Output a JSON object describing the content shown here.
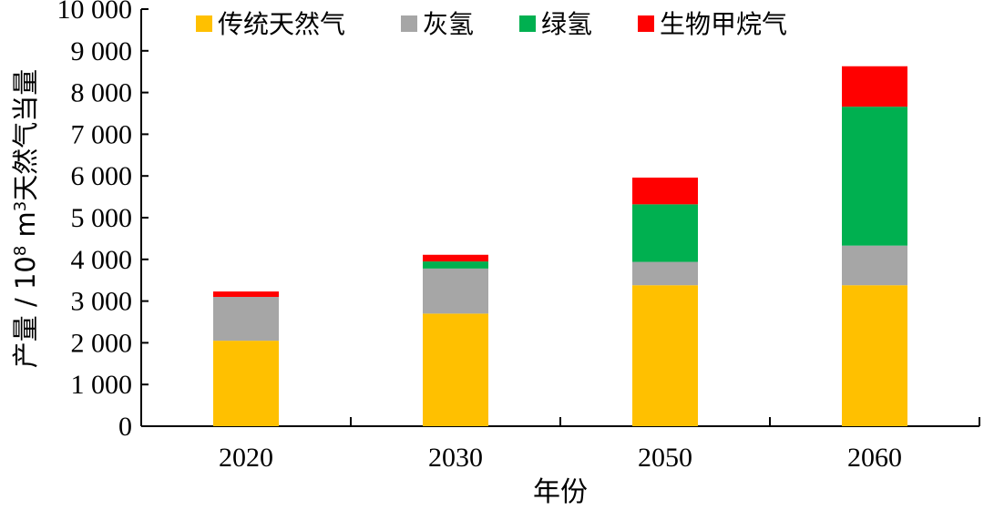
{
  "chart_data": {
    "type": "bar",
    "stacked": true,
    "categories": [
      "2020",
      "2030",
      "2050",
      "2060"
    ],
    "series": [
      {
        "name": "传统天然气",
        "color": "#FFC000",
        "values": [
          2050,
          2700,
          3380,
          3380
        ]
      },
      {
        "name": "灰氢",
        "color": "#A6A6A6",
        "values": [
          1050,
          1080,
          560,
          950
        ]
      },
      {
        "name": "绿氢",
        "color": "#00B050",
        "values": [
          0,
          170,
          1380,
          3330
        ]
      },
      {
        "name": "生物甲烷气",
        "color": "#FF0000",
        "values": [
          130,
          160,
          640,
          970
        ]
      }
    ],
    "xlabel": "年份",
    "ylabel": {
      "prefix": "产量 / 10",
      "exp1": "8",
      "mid": " m",
      "exp2": "3",
      "suffix": "天然气当量"
    },
    "ylim": [
      0,
      10000
    ],
    "yticks": [
      0,
      1000,
      2000,
      3000,
      4000,
      5000,
      6000,
      7000,
      8000,
      9000,
      10000
    ],
    "ytick_labels": [
      "0",
      "1 000",
      "2 000",
      "3 000",
      "4 000",
      "5 000",
      "6 000",
      "7 000",
      "8 000",
      "9 000",
      "10 000"
    ],
    "legend_position": "top",
    "grid": false
  }
}
